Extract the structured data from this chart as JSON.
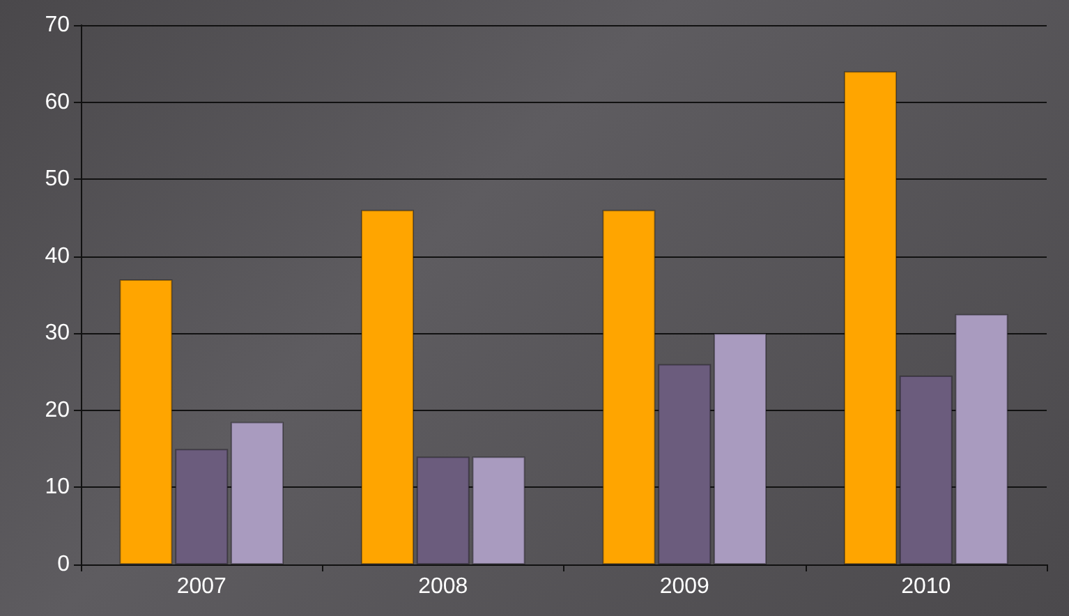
{
  "chart_data": {
    "type": "bar",
    "categories": [
      "2007",
      "2008",
      "2009",
      "2010"
    ],
    "series": [
      {
        "color": "#ffa500",
        "values": [
          37,
          46,
          46,
          64
        ]
      },
      {
        "color": "#6b5c7d",
        "values": [
          15,
          14,
          26,
          24.5
        ]
      },
      {
        "color": "#a99bbf",
        "values": [
          18.5,
          14,
          30,
          32.5
        ]
      }
    ],
    "ylim": [
      0,
      70
    ],
    "yticks": [
      0,
      10,
      20,
      30,
      40,
      50,
      60,
      70
    ],
    "grid": "y"
  }
}
